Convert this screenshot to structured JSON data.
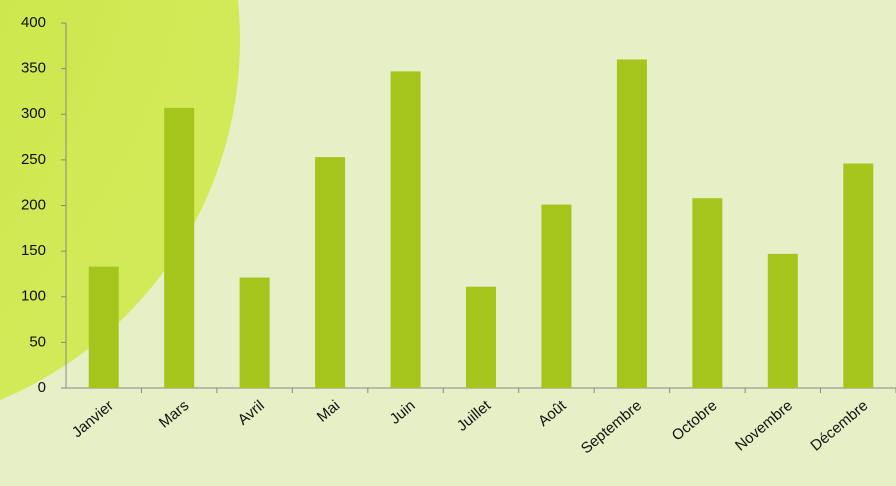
{
  "chart_data": {
    "type": "bar",
    "categories": [
      "Janvier",
      "Mars",
      "Avril",
      "Mai",
      "Juin",
      "Juillet",
      "Août",
      "Septembre",
      "Octobre",
      "Novembre",
      "Décembre"
    ],
    "values": [
      133,
      307,
      121,
      253,
      347,
      111,
      201,
      360,
      208,
      147,
      246
    ],
    "color": "#a5c51c",
    "ylim": [
      0,
      400
    ],
    "yticks": [
      0,
      50,
      100,
      150,
      200,
      250,
      300,
      350,
      400
    ],
    "grid": false
  }
}
